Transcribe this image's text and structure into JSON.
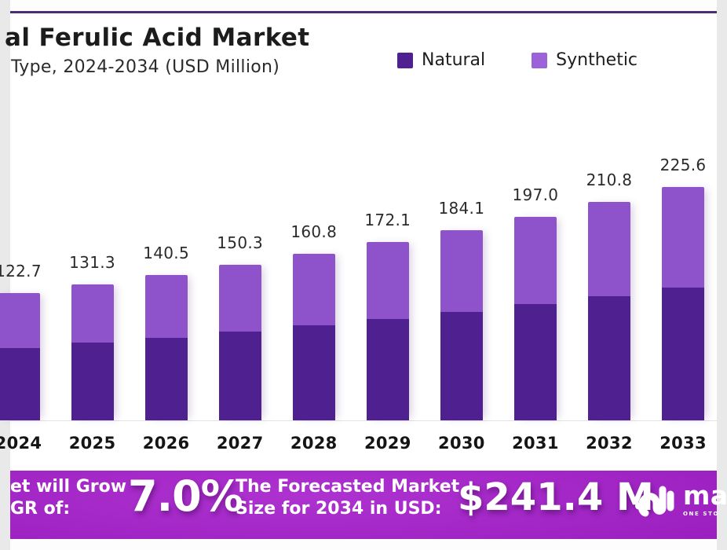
{
  "page": {
    "top_border_color": "#4a2f77"
  },
  "header": {
    "title": "al Ferulic Acid Market",
    "subtitle": "Type, 2024-2034 (USD Million)"
  },
  "legend": [
    {
      "label": "Natural",
      "color": "#4e2090"
    },
    {
      "label": "Synthetic",
      "color": "#9b62da"
    }
  ],
  "chart_data": {
    "type": "bar",
    "stacked": true,
    "unit": "USD Million",
    "title": "al Ferulic Acid Market",
    "subtitle": "Type, 2024-2034 (USD Million)",
    "legend_position": "top-right",
    "grid": false,
    "categories": [
      "2024",
      "2025",
      "2026",
      "2027",
      "2028",
      "2029",
      "2030",
      "2031",
      "2032",
      "2033"
    ],
    "series": [
      {
        "name": "Natural",
        "color": "#4e2090",
        "values": [
          70.0,
          74.9,
          80.1,
          85.7,
          91.7,
          98.1,
          104.9,
          112.3,
          120.2,
          128.6
        ]
      },
      {
        "name": "Synthetic",
        "color": "#8e52cb",
        "values": [
          52.7,
          56.4,
          60.4,
          64.6,
          69.1,
          74.0,
          79.2,
          84.7,
          90.6,
          97.0
        ]
      }
    ],
    "totals": [
      122.7,
      131.3,
      140.5,
      150.3,
      160.8,
      172.1,
      184.1,
      197.0,
      210.8,
      225.6
    ],
    "total_labels": [
      "122.7",
      "131.3",
      "140.5",
      "150.3",
      "160.8",
      "172.1",
      "184.1",
      "197.0",
      "210.8",
      "225.6"
    ],
    "note": "first bar (2024) and its labels are cropped at the left image edge"
  },
  "banner": {
    "left_text_line1": "et will Grow",
    "left_text_line2": "GR of:",
    "cagr_value": "7.0%",
    "forecast_label_line1": "The Forecasted Market",
    "forecast_label_line2": "Size for 2034 in USD:",
    "forecast_value": "$241.4 M",
    "colors": {
      "bright": "#ae32d0",
      "mid": "#9a1fbe",
      "dark": "#7a0f92"
    },
    "logo": {
      "mark": "soundwave-mark",
      "text": "ma",
      "tagline": "ONE STO"
    }
  }
}
